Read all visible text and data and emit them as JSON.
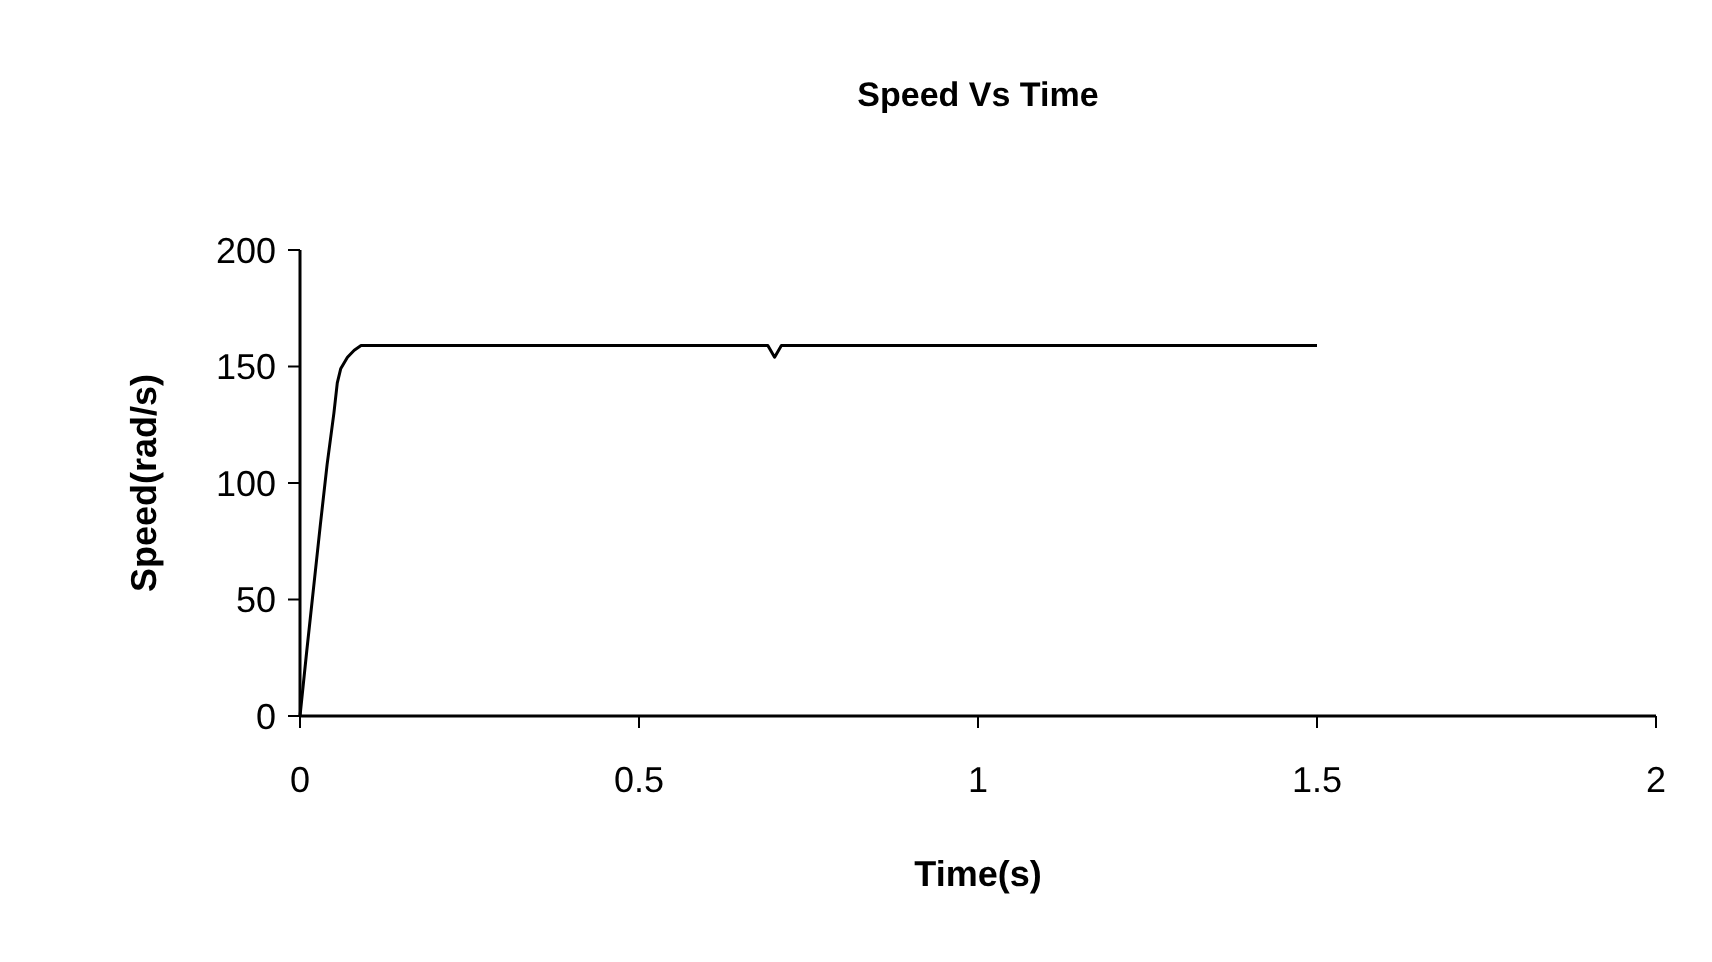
{
  "chart_data": {
    "type": "line",
    "title": "Speed Vs Time",
    "xlabel": "Time(s)",
    "ylabel": "Speed(rad/s)",
    "series": [
      {
        "color": "#000000",
        "x": [
          0,
          0.01,
          0.02,
          0.03,
          0.04,
          0.05,
          0.055,
          0.06,
          0.07,
          0.08,
          0.09,
          0.3,
          0.6,
          0.69,
          0.7,
          0.71,
          1.0,
          1.5
        ],
        "values": [
          0,
          28,
          55,
          82,
          108,
          130,
          143,
          149,
          154,
          157,
          159,
          159,
          159,
          159,
          154,
          159,
          159,
          159
        ]
      }
    ],
    "xlim": [
      0,
      2
    ],
    "xticks": [
      0,
      0.5,
      1,
      1.5,
      2
    ],
    "ylim": [
      0,
      200
    ],
    "yticks": [
      0,
      50,
      100,
      150,
      200
    ],
    "grid": false,
    "marker": "none",
    "line_style": "solid"
  }
}
